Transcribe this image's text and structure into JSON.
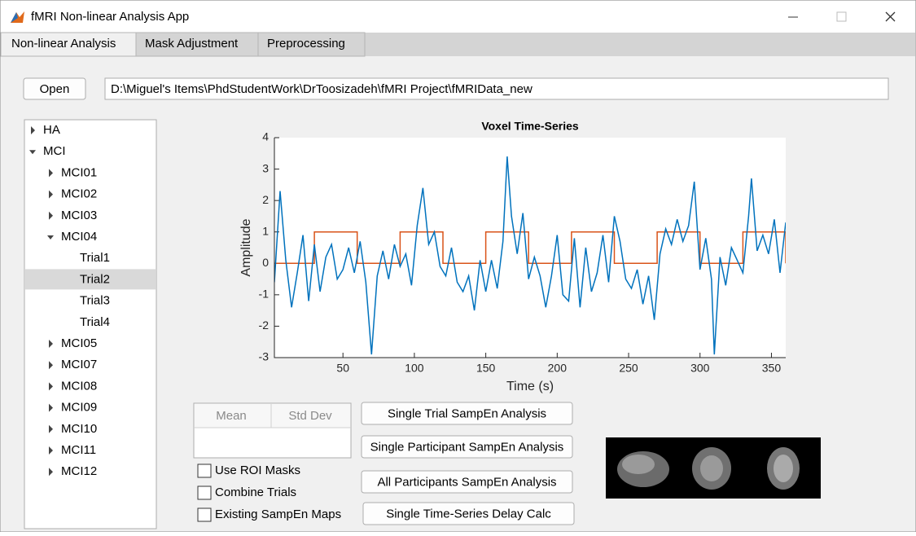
{
  "window": {
    "title": "fMRI Non-linear Analysis App"
  },
  "tabs": [
    {
      "label": "Non-linear Analysis",
      "active": true
    },
    {
      "label": "Mask Adjustment"
    },
    {
      "label": "Preprocessing"
    }
  ],
  "open_button": "Open",
  "path_field": "D:\\Miguel's Items\\PhdStudentWork\\DrToosizadeh\\fMRI Project\\fMRIData_new",
  "tree": [
    {
      "label": "HA",
      "level": 0,
      "state": "collapsed"
    },
    {
      "label": "MCI",
      "level": 0,
      "state": "expanded"
    },
    {
      "label": "MCI01",
      "level": 1,
      "state": "collapsed"
    },
    {
      "label": "MCI02",
      "level": 1,
      "state": "collapsed"
    },
    {
      "label": "MCI03",
      "level": 1,
      "state": "collapsed"
    },
    {
      "label": "MCI04",
      "level": 1,
      "state": "expanded"
    },
    {
      "label": "Trial1",
      "level": 2
    },
    {
      "label": "Trial2",
      "level": 2,
      "selected": true
    },
    {
      "label": "Trial3",
      "level": 2
    },
    {
      "label": "Trial4",
      "level": 2
    },
    {
      "label": "MCI05",
      "level": 1,
      "state": "collapsed"
    },
    {
      "label": "MCI07",
      "level": 1,
      "state": "collapsed"
    },
    {
      "label": "MCI08",
      "level": 1,
      "state": "collapsed"
    },
    {
      "label": "MCI09",
      "level": 1,
      "state": "collapsed"
    },
    {
      "label": "MCI10",
      "level": 1,
      "state": "collapsed"
    },
    {
      "label": "MCI11",
      "level": 1,
      "state": "collapsed"
    },
    {
      "label": "MCI12",
      "level": 1,
      "state": "collapsed"
    }
  ],
  "table": {
    "columns": [
      "Mean",
      "Std Dev"
    ]
  },
  "checkboxes": [
    "Use ROI Masks",
    "Combine Trials",
    "Existing SampEn Maps"
  ],
  "buttons": [
    "Single Trial SampEn Analysis",
    "Single Participant SampEn Analysis",
    "All Participants SampEn Analysis",
    "Single Time-Series Delay Calc"
  ],
  "chart_data": {
    "type": "line",
    "title": "Voxel Time-Series",
    "x_label": "Time (s)",
    "y_label": "Amplitude",
    "xlim": [
      2,
      360
    ],
    "ylim": [
      -3,
      4
    ],
    "xticks": [
      50,
      100,
      150,
      200,
      250,
      300,
      350
    ],
    "yticks": [
      -3,
      -2,
      -1,
      0,
      1,
      2,
      3,
      4
    ],
    "series": [
      {
        "color": "#0072BD",
        "x": [
          2,
          6,
          10,
          14,
          18,
          22,
          26,
          30,
          34,
          38,
          42,
          46,
          50,
          54,
          58,
          62,
          66,
          70,
          74,
          78,
          82,
          86,
          90,
          94,
          98,
          102,
          106,
          110,
          114,
          118,
          122,
          126,
          130,
          134,
          138,
          142,
          146,
          150,
          154,
          158,
          162,
          165,
          168,
          172,
          176,
          180,
          184,
          188,
          192,
          196,
          200,
          204,
          208,
          212,
          216,
          220,
          224,
          228,
          232,
          236,
          240,
          244,
          248,
          252,
          256,
          260,
          264,
          268,
          272,
          276,
          280,
          284,
          288,
          292,
          296,
          300,
          304,
          308,
          310,
          314,
          318,
          322,
          326,
          330,
          334,
          336,
          340,
          344,
          348,
          352,
          356,
          360
        ],
        "values": [
          -0.6,
          2.3,
          0.1,
          -1.4,
          -0.3,
          0.9,
          -1.2,
          0.6,
          -0.9,
          0.2,
          0.6,
          -0.5,
          -0.2,
          0.5,
          -0.3,
          0.7,
          -0.6,
          -2.9,
          -0.4,
          0.4,
          -0.5,
          0.6,
          -0.1,
          0.3,
          -0.7,
          1.2,
          2.4,
          0.6,
          1.0,
          -0.1,
          -0.4,
          0.5,
          -0.6,
          -0.9,
          -0.4,
          -1.5,
          0.1,
          -0.9,
          0.1,
          -0.8,
          0.7,
          3.4,
          1.5,
          0.3,
          1.6,
          -0.5,
          0.2,
          -0.4,
          -1.4,
          -0.4,
          0.9,
          -1.0,
          -1.2,
          0.8,
          -1.4,
          0.5,
          -0.9,
          -0.3,
          0.9,
          -0.6,
          1.5,
          0.7,
          -0.5,
          -0.8,
          -0.2,
          -1.3,
          -0.4,
          -1.8,
          0.3,
          1.1,
          0.6,
          1.4,
          0.7,
          1.2,
          2.6,
          -0.2,
          0.8,
          -0.5,
          -2.9,
          0.2,
          -0.7,
          0.5,
          0.1,
          -0.3,
          1.5,
          2.7,
          0.4,
          0.9,
          0.3,
          1.4,
          -0.3,
          1.3
        ]
      },
      {
        "color": "#D95319",
        "x": [
          2,
          30,
          30,
          60,
          60,
          90,
          90,
          120,
          120,
          150,
          150,
          180,
          180,
          210,
          210,
          240,
          240,
          270,
          270,
          300,
          300,
          330,
          330,
          360,
          360
        ],
        "values": [
          0,
          0,
          1,
          1,
          0,
          0,
          1,
          1,
          0,
          0,
          1,
          1,
          0,
          0,
          1,
          1,
          0,
          0,
          1,
          1,
          0,
          0,
          1,
          1,
          0
        ]
      }
    ]
  }
}
